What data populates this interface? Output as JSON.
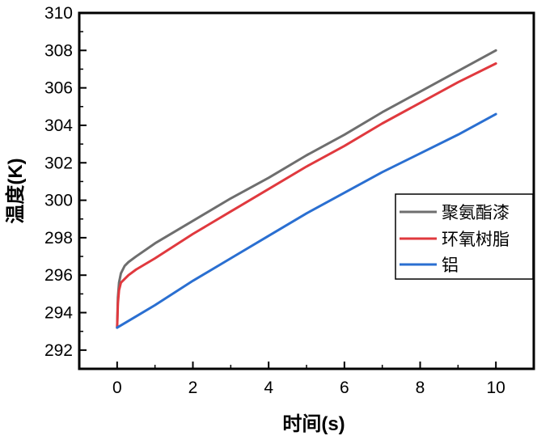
{
  "chart_data": {
    "type": "line",
    "title": "",
    "xlabel": "时间(s)",
    "ylabel": "温度(K)",
    "xlim": [
      -1,
      11
    ],
    "ylim": [
      291,
      310
    ],
    "xticks": [
      0,
      2,
      4,
      6,
      8,
      10
    ],
    "yticks": [
      292,
      294,
      296,
      298,
      300,
      302,
      304,
      306,
      308,
      310
    ],
    "grid": false,
    "legend_position": "right",
    "series": [
      {
        "name": "聚氨酯漆",
        "color": "#6e6e6e",
        "x": [
          0,
          0.02,
          0.05,
          0.1,
          0.2,
          0.3,
          0.5,
          1,
          2,
          3,
          4,
          5,
          6,
          7,
          8,
          9,
          10
        ],
        "y": [
          293.2,
          294.8,
          295.6,
          296.1,
          296.5,
          296.7,
          297.0,
          297.7,
          298.9,
          300.1,
          301.2,
          302.4,
          303.5,
          304.7,
          305.8,
          306.9,
          308.0
        ]
      },
      {
        "name": "环氧树脂",
        "color": "#e0393e",
        "x": [
          0,
          0.02,
          0.05,
          0.1,
          0.2,
          0.3,
          0.5,
          1,
          2,
          3,
          4,
          5,
          6,
          7,
          8,
          9,
          10
        ],
        "y": [
          293.2,
          294.5,
          295.2,
          295.6,
          295.8,
          296.0,
          296.3,
          296.9,
          298.2,
          299.4,
          300.6,
          301.8,
          302.9,
          304.1,
          305.2,
          306.3,
          307.3
        ]
      },
      {
        "name": "铝",
        "color": "#2a6fd1",
        "x": [
          0,
          0.5,
          1,
          2,
          3,
          4,
          5,
          6,
          7,
          8,
          9,
          10
        ],
        "y": [
          293.2,
          293.8,
          294.4,
          295.7,
          296.9,
          298.1,
          299.3,
          300.4,
          301.5,
          302.5,
          303.5,
          304.6
        ]
      }
    ]
  }
}
